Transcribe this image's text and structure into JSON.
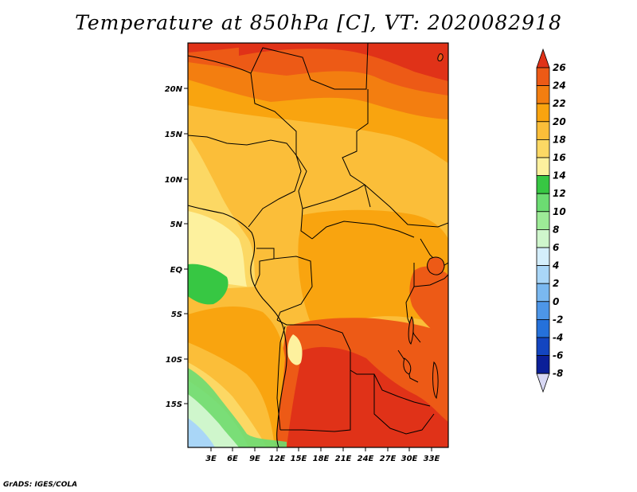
{
  "title": "Temperature at 850hPa [C], VT: 2020082918",
  "footer": "GrADS: IGES/COLA",
  "lat_ticks": [
    "20N",
    "15N",
    "10N",
    "5N",
    "EQ",
    "5S",
    "10S",
    "15S"
  ],
  "lon_ticks": [
    "3E",
    "6E",
    "9E",
    "12E",
    "15E",
    "18E",
    "21E",
    "24E",
    "27E",
    "30E",
    "33E"
  ],
  "colorbar": {
    "labels": [
      "26",
      "24",
      "22",
      "20",
      "18",
      "16",
      "14",
      "12",
      "10",
      "8",
      "6",
      "4",
      "2",
      "0",
      "-2",
      "-4",
      "-6",
      "-8"
    ],
    "colors": [
      "#e03218",
      "#ed5a16",
      "#f37e10",
      "#f9a40f",
      "#fbbe39",
      "#fcd864",
      "#fdf19e",
      "#37c743",
      "#6cdc72",
      "#9deb97",
      "#cff6cc",
      "#d4eefb",
      "#a9d6f7",
      "#7ab8f0",
      "#4d96e8",
      "#2571da",
      "#1345c0",
      "#0b1f98",
      "#05086f"
    ]
  },
  "colors": {
    "sea": "#fde8a0",
    "frame": "#000000"
  }
}
